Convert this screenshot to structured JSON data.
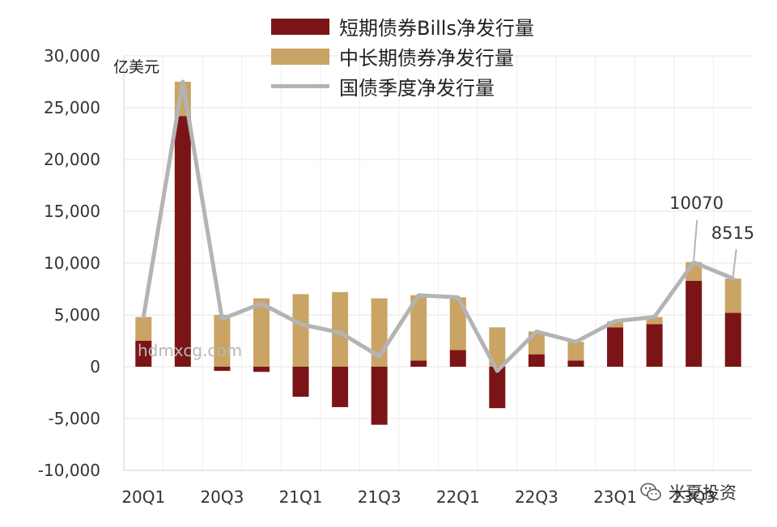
{
  "chart_data": {
    "type": "bar",
    "y_unit": "亿美元",
    "ylim": [
      -10000,
      30000
    ],
    "yticks": [
      30000,
      25000,
      20000,
      15000,
      10000,
      5000,
      0,
      -5000,
      -10000
    ],
    "ytick_labels": [
      "30,000",
      "25,000",
      "20,000",
      "15,000",
      "10,000",
      "5,000",
      "0",
      "-5,000",
      "-10,000"
    ],
    "categories": [
      "20Q1",
      "20Q2",
      "20Q3",
      "20Q4",
      "21Q1",
      "21Q2",
      "21Q3",
      "21Q4",
      "22Q1",
      "22Q2",
      "22Q3",
      "22Q4",
      "23Q1",
      "23Q2",
      "23Q3",
      "23Q4"
    ],
    "xtick_labels": [
      "20Q1",
      "20Q3",
      "21Q1",
      "21Q3",
      "22Q1",
      "22Q3",
      "23Q1",
      "23Q3"
    ],
    "grid": true,
    "legend_position": "top",
    "series": [
      {
        "name": "短期债券Bills净发行量",
        "kind": "stacked-bar",
        "color": "#7b1416",
        "values": [
          2500,
          24200,
          -400,
          -500,
          -2900,
          -3900,
          -5600,
          600,
          1600,
          -4000,
          1200,
          600,
          3800,
          4100,
          8300,
          5200
        ]
      },
      {
        "name": "中长期债券净发行量",
        "kind": "stacked-bar",
        "color": "#c9a465",
        "values": [
          2300,
          3300,
          5000,
          6600,
          7000,
          7200,
          6600,
          6300,
          5100,
          3800,
          2200,
          1800,
          600,
          700,
          1800,
          3300
        ]
      },
      {
        "name": "国债季度净发行量",
        "kind": "line",
        "color": "#b4b4b4",
        "values": [
          4800,
          27500,
          4600,
          6100,
          4100,
          3300,
          1000,
          6900,
          6700,
          -400,
          3400,
          2400,
          4400,
          4800,
          10070,
          8515
        ]
      }
    ],
    "annotations": [
      {
        "category": "23Q3",
        "text": "10070"
      },
      {
        "category": "23Q4",
        "text": "8515"
      }
    ]
  },
  "watermark": "hdmxcg.com",
  "logo": {
    "text": "米夏投资",
    "icon": "wechat-icon"
  }
}
